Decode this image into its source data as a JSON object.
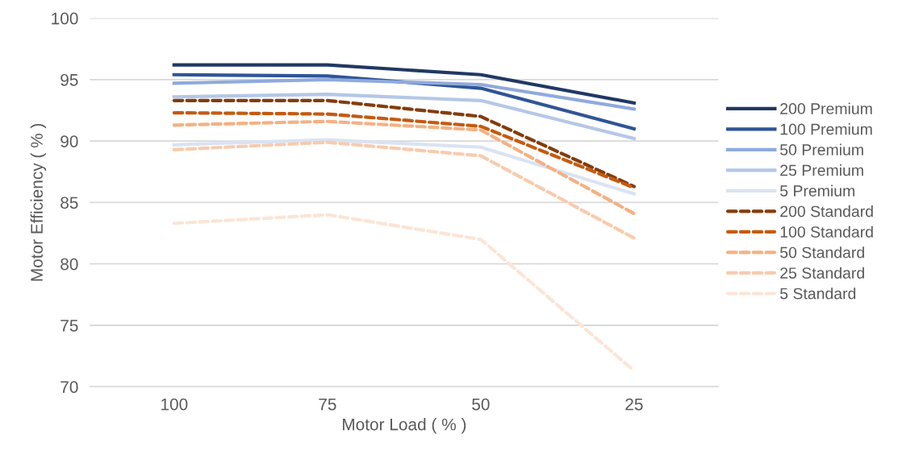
{
  "chart_data": {
    "type": "line",
    "xlabel": "Motor Load ( % )",
    "ylabel": "Motor Efficiency ( % )",
    "categories": [
      "100",
      "75",
      "50",
      "25"
    ],
    "ylim": [
      70,
      100
    ],
    "yticks": [
      70,
      75,
      80,
      85,
      90,
      95,
      100
    ],
    "grid": "y",
    "legend": "right",
    "marker": "none",
    "series": [
      {
        "name": "200 Premium",
        "color": "#203864",
        "line_style": "solid",
        "values": [
          96.2,
          96.2,
          95.4,
          93.1
        ]
      },
      {
        "name": "100 Premium",
        "color": "#2f5597",
        "line_style": "solid",
        "values": [
          95.4,
          95.3,
          94.3,
          91.0
        ]
      },
      {
        "name": "50 Premium",
        "color": "#8faadc",
        "line_style": "solid",
        "values": [
          94.7,
          95.0,
          94.6,
          92.6
        ]
      },
      {
        "name": "25 Premium",
        "color": "#b4c7e7",
        "line_style": "solid",
        "values": [
          93.6,
          93.8,
          93.3,
          90.2
        ]
      },
      {
        "name": "5 Premium",
        "color": "#dae3f3",
        "line_style": "solid",
        "values": [
          89.7,
          90.1,
          89.5,
          85.7
        ]
      },
      {
        "name": "200 Standard",
        "color": "#843c0c",
        "line_style": "dashed",
        "values": [
          93.3,
          93.3,
          92.0,
          86.3
        ]
      },
      {
        "name": "100 Standard",
        "color": "#c55a11",
        "line_style": "dashed",
        "values": [
          92.3,
          92.2,
          91.2,
          86.2
        ]
      },
      {
        "name": "50 Standard",
        "color": "#f4b183",
        "line_style": "dashed",
        "values": [
          91.3,
          91.6,
          90.9,
          84.1
        ]
      },
      {
        "name": "25 Standard",
        "color": "#f8cbad",
        "line_style": "dashed",
        "values": [
          89.3,
          89.9,
          88.8,
          82.1
        ]
      },
      {
        "name": "5 Standard",
        "color": "#fbe5d6",
        "line_style": "dashed",
        "values": [
          83.3,
          84.0,
          82.0,
          71.3
        ]
      }
    ]
  }
}
